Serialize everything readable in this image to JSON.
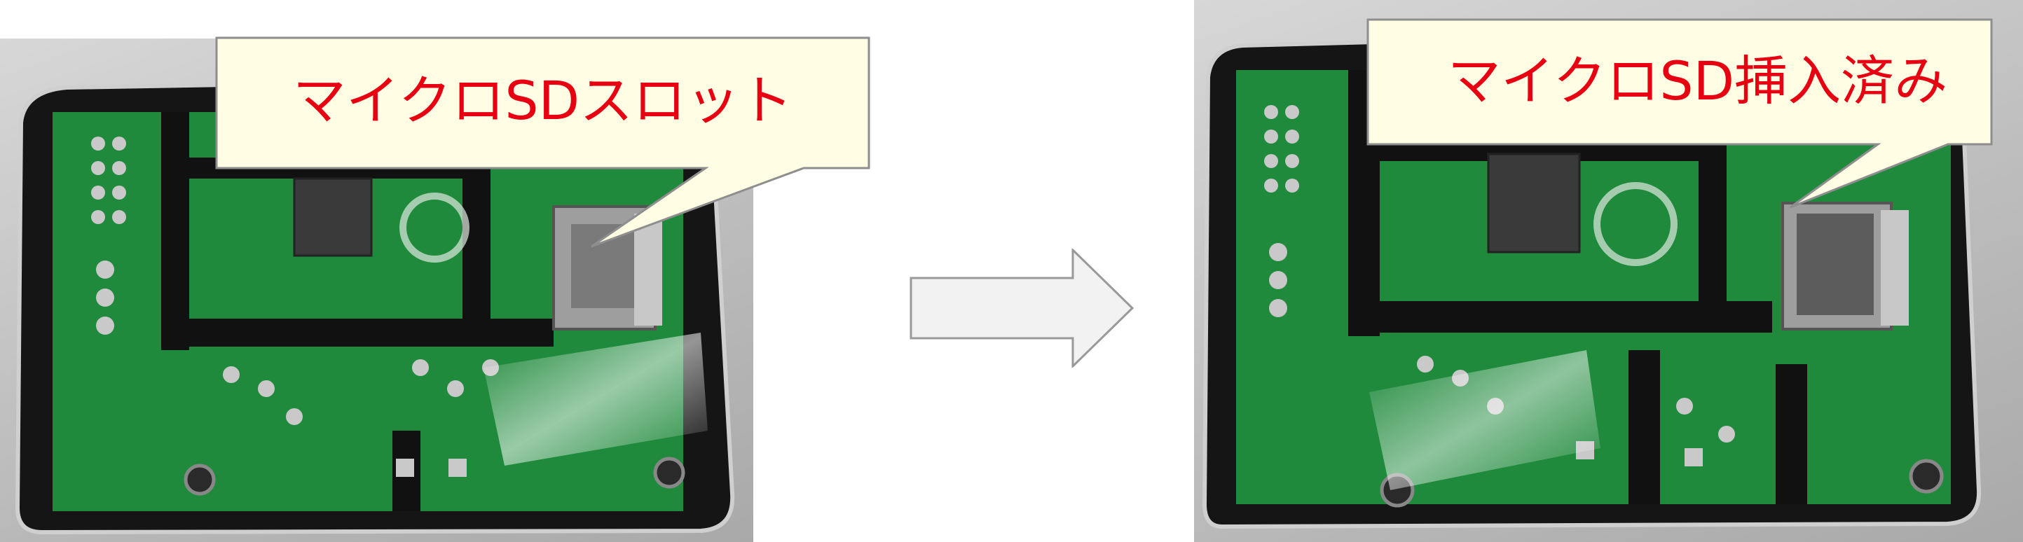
{
  "callout_left": {
    "text": "マイクロSDスロット"
  },
  "callout_right": {
    "text": "マイクロSD挿入済み"
  },
  "colors": {
    "callout_fill": "#fffde3",
    "callout_border": "#8e8e8e",
    "callout_text": "#e60012",
    "arrow_fill": "#f2f2f2",
    "arrow_border": "#999999",
    "pcb_green": "#1f8a3c",
    "case_black": "#141414"
  },
  "icons": {
    "transition_arrow": "right-arrow-icon"
  }
}
